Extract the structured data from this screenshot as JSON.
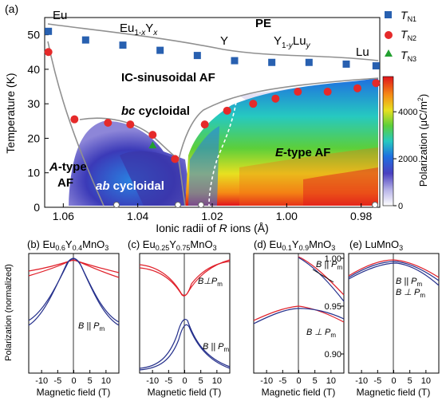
{
  "chart_data": [
    {
      "type": "scatter",
      "panel_label": "(a)",
      "xlabel_html": "Ionic radii of R ions (Å)",
      "ylabel": "Temperature (K)",
      "xlim": [
        1.065,
        0.975
      ],
      "ylim": [
        0,
        55
      ],
      "xticks": [
        "1.06",
        "1.04",
        "1.02",
        "1.00",
        "0.98"
      ],
      "yticks": [
        "0",
        "10",
        "20",
        "30",
        "40",
        "50"
      ],
      "series": [
        {
          "name": "TN1",
          "marker": "square",
          "color": "#2860b0",
          "x": [
            1.064,
            1.054,
            1.044,
            1.034,
            1.024,
            1.014,
            1.004,
            0.994,
            0.984,
            0.976
          ],
          "y": [
            51,
            48.5,
            47,
            45.5,
            44,
            42.5,
            42,
            42,
            41.5,
            41
          ]
        },
        {
          "name": "TN2",
          "marker": "circle",
          "color": "#e52a2a",
          "x": [
            1.064,
            1.057,
            1.048,
            1.042,
            1.036,
            1.03,
            1.022,
            1.016,
            1.009,
            1.003,
            0.997,
            0.989,
            0.981,
            0.976
          ],
          "y": [
            45,
            25.5,
            24.5,
            24,
            21,
            14,
            24,
            28,
            30,
            31.5,
            33.5,
            33.5,
            34.5,
            36
          ]
        },
        {
          "name": "TN3",
          "marker": "triangle",
          "color": "#22a030",
          "x": [
            1.036
          ],
          "y": [
            18
          ]
        }
      ],
      "legend": [
        {
          "label": "T",
          "sub": "N1"
        },
        {
          "label": "T",
          "sub": "N2"
        },
        {
          "label": "T",
          "sub": "N3"
        }
      ],
      "compound_labels": [
        "Eu",
        "Eu1-xYx",
        "Y",
        "Y1-yLuy",
        "Lu"
      ],
      "phase_labels": [
        "PE",
        "IC-sinusoidal AF",
        "bc cycloidal",
        "A-type",
        "AF",
        "ab cycloidal",
        "E-type AF"
      ],
      "colorbar": {
        "label": "Polarization (μC/m²)",
        "ticks": [
          "0",
          "2000",
          "4000"
        ]
      }
    },
    {
      "type": "line",
      "panel_label": "(b)",
      "title": "Eu0.6Y0.4MnO3",
      "xlabel": "Magnetic field (T)",
      "ylabel": "Polarization (normalized)",
      "xticks": [
        "-10",
        "-5",
        "0",
        "5",
        "10"
      ],
      "annotations": [
        "B || Pm"
      ]
    },
    {
      "type": "line",
      "panel_label": "(c)",
      "title": "Eu0.25Y0.75MnO3",
      "xlabel": "Magnetic field (T)",
      "xticks": [
        "-10",
        "-5",
        "0",
        "5",
        "10"
      ],
      "annotations": [
        "B⊥Pm",
        "B || Pm"
      ]
    },
    {
      "type": "line",
      "panel_label": "(d)",
      "title": "Eu0.1Y0.9MnO3",
      "xlabel": "Magnetic field (T)",
      "xticks": [
        "-10",
        "-5",
        "0",
        "5",
        "10"
      ],
      "yticks": [
        "0.90",
        "0.95",
        "1.00"
      ],
      "annotations": [
        "B || Pm",
        "B ⊥ Pm"
      ]
    },
    {
      "type": "line",
      "panel_label": "(e)",
      "title": "LuMnO3",
      "xlabel": "Magnetic field (T)",
      "xticks": [
        "-10",
        "-5",
        "0",
        "5",
        "10"
      ],
      "annotations": [
        "B || Pm",
        "B ⊥ Pm"
      ]
    }
  ],
  "colors": {
    "blue_marker": "#2860b0",
    "red_marker": "#e52a2a",
    "green_marker": "#22a030",
    "curve_red": "#e0202a",
    "curve_blue": "#25308c"
  }
}
